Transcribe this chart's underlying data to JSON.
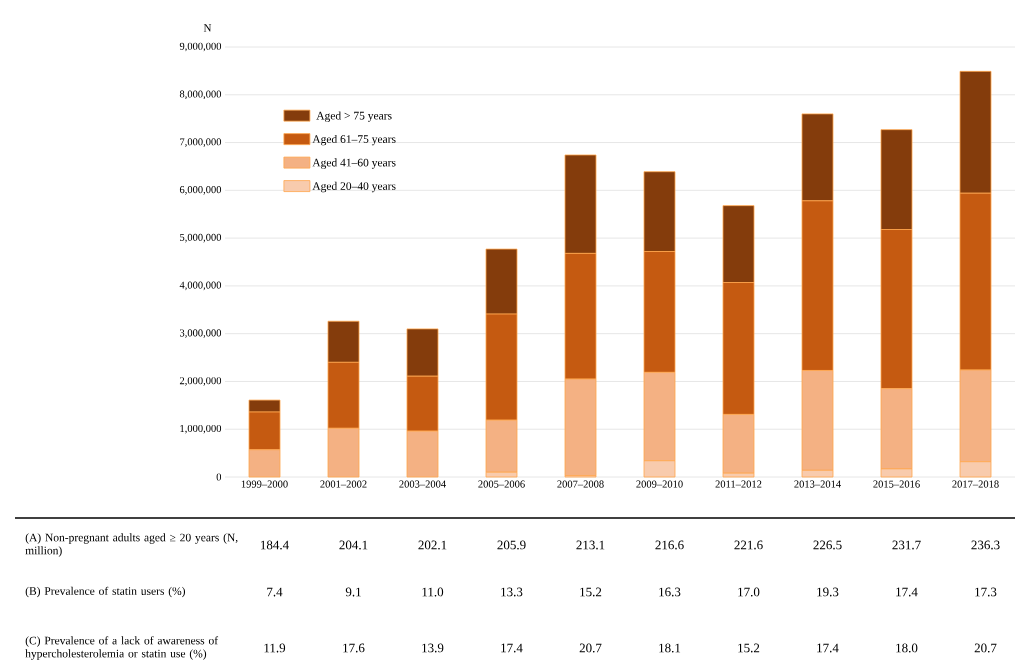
{
  "chart_data": {
    "type": "bar",
    "stacked": true,
    "ylabel": "N",
    "categories": [
      "1999–2000",
      "2001–2002",
      "2003–2004",
      "2005–2006",
      "2007–2008",
      "2009–2010",
      "2011–2012",
      "2013–2014",
      "2015–2016",
      "2017–2018"
    ],
    "series": [
      {
        "name": "Aged 20–40 years",
        "color": "#f8cbad",
        "values": [
          0,
          0,
          0,
          100000,
          30000,
          340000,
          80000,
          140000,
          170000,
          320000
        ]
      },
      {
        "name": "Aged 41–60 years",
        "color": "#f4b183",
        "values": [
          570000,
          1020000,
          960000,
          1090000,
          2020000,
          1850000,
          1230000,
          2090000,
          1680000,
          1920000
        ]
      },
      {
        "name": "Aged 61–75 years",
        "color": "#c55a11",
        "values": [
          790000,
          1380000,
          1150000,
          2220000,
          2630000,
          2530000,
          2760000,
          3550000,
          3330000,
          3700000
        ]
      },
      {
        "name": "Aged > 75 years",
        "color": "#843c0c",
        "values": [
          250000,
          860000,
          990000,
          1360000,
          2060000,
          1670000,
          1610000,
          1820000,
          2090000,
          2550000
        ]
      }
    ],
    "ylim": [
      0,
      9000000
    ],
    "yticks": [
      0,
      {
        "value": 1000000,
        "label": "1,000,000"
      },
      {
        "value": 2000000,
        "label": "2,000,000"
      },
      {
        "value": 3000000,
        "label": "3,000,000"
      },
      {
        "value": 4000000,
        "label": "4,000,000"
      },
      {
        "value": 5000000,
        "label": "5,000,000"
      },
      {
        "value": 6000000,
        "label": "6,000,000"
      },
      {
        "value": 7000000,
        "label": "7,000,000"
      },
      {
        "value": 8000000,
        "label": "8,000,000"
      },
      {
        "value": 9000000,
        "label": "9,000,000"
      }
    ],
    "grid": "y",
    "legend": "top left",
    "annotations": [
      "(A) Non-pregnant adults aged ≥ 20 years (N, million)",
      "184.4",
      "204.1",
      "202.1",
      "205.9",
      "213.1",
      "216.6",
      "221.6",
      "226.5",
      "231.7",
      "236.3",
      "(B) Prevalence of statin users (%)",
      "7.4",
      "9.1",
      "11.0",
      "13.3",
      "15.2",
      "16.3",
      "17.0",
      "19.3",
      "17.4",
      "17.3",
      "(C) Prevalence of a lack of awareness of hypercholesterolemia or statin use (%)",
      "11.9",
      "17.6",
      "13.9",
      "17.4",
      "20.7",
      "18.1",
      "15.2",
      "17.4",
      "18.0",
      "20.7"
    ]
  }
}
